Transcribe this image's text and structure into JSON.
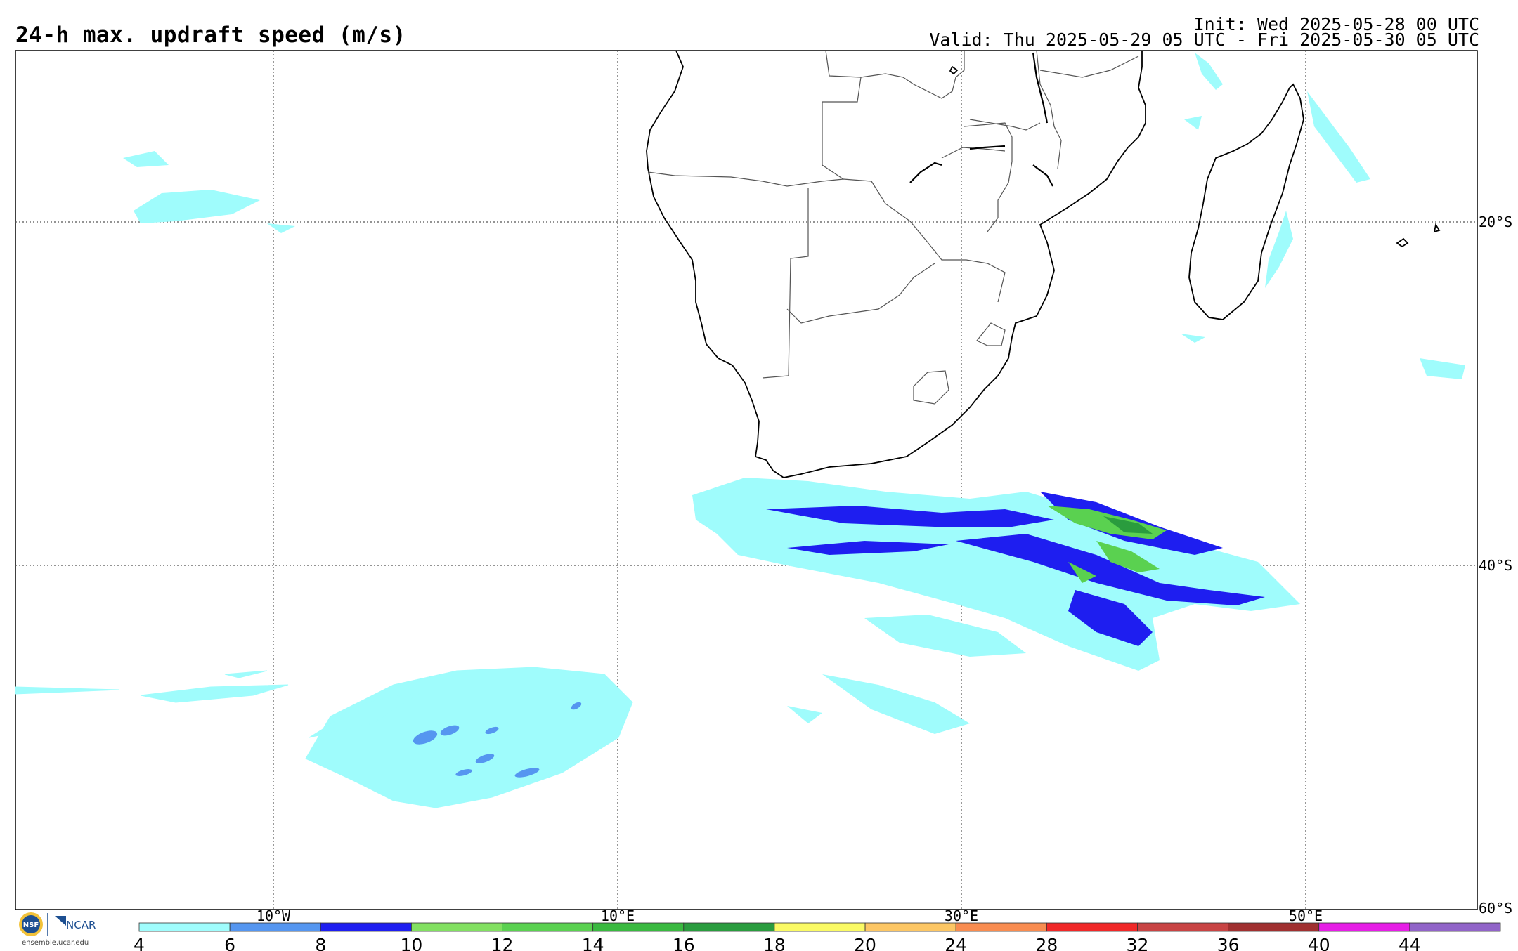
{
  "header": {
    "title": "24-h max. updraft speed (m/s)",
    "init": "Init: Wed 2025-05-28 00 UTC",
    "valid": "Valid: Thu 2025-05-29 05 UTC - Fri 2025-05-30 05 UTC"
  },
  "map": {
    "lon_labels": [
      "10°W",
      "10°E",
      "30°E",
      "50°E"
    ],
    "lat_labels": [
      "20°S",
      "40°S",
      "60°S"
    ]
  },
  "colorbar": {
    "labels": [
      "4",
      "6",
      "8",
      "10",
      "12",
      "14",
      "16",
      "18",
      "20",
      "24",
      "28",
      "32",
      "36",
      "40",
      "44"
    ],
    "colors": [
      "#9ffcfc",
      "#5596f0",
      "#1e1ef0",
      "#82e061",
      "#5ad150",
      "#3ab940",
      "#2a9c3e",
      "#fafa64",
      "#fcc664",
      "#f88c50",
      "#f02828",
      "#c84444",
      "#a03030",
      "#e61ee6",
      "#9164c8"
    ]
  },
  "logo": {
    "nsf": "NSF",
    "ncar": "NCAR",
    "caption": "ensemble.ucar.edu"
  }
}
